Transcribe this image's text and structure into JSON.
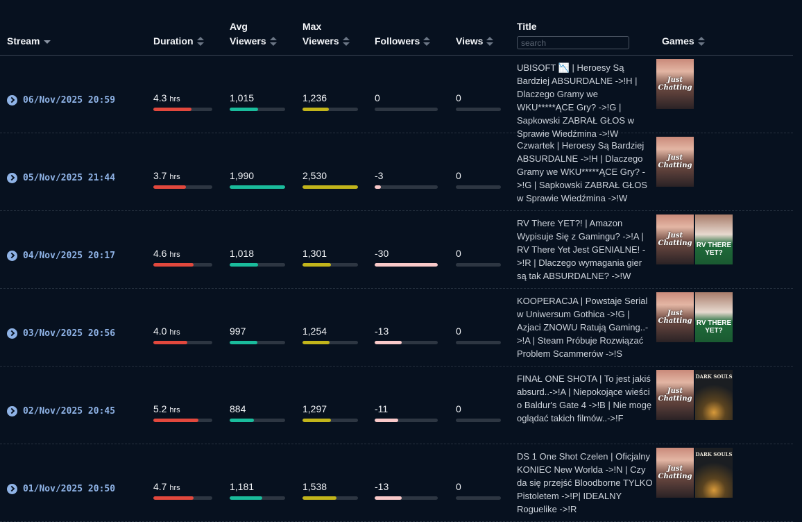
{
  "header": {
    "stream": "Stream",
    "duration": "Duration",
    "avg_viewers": [
      "Avg",
      "Viewers"
    ],
    "max_viewers": [
      "Max",
      "Viewers"
    ],
    "followers": "Followers",
    "views": "Views",
    "title": "Title",
    "title_search_placeholder": "search",
    "games": "Games"
  },
  "colors": {
    "duration": "#e2483d",
    "avg": "#1abc9c",
    "max": "#c2b51b",
    "followers": "#f9c9c9"
  },
  "duration_unit": "hrs",
  "rows": [
    {
      "stream": "06/Nov/2025 20:59",
      "duration": "4.3",
      "duration_pct": 0.65,
      "avg": "1,015",
      "avg_pct": 0.51,
      "max": "1,236",
      "max_pct": 0.48,
      "followers": "0",
      "followers_pct": 0,
      "views": "0",
      "views_pct": 0,
      "title": "UBISOFT 📉 | Heroesy Są Bardziej ABSURDALNE ->!H | Dlaczego Gramy we WKU*****ĄCE Gry? ->!G | Sapkowski ZABRAŁ GŁOS w Sprawie Wiedźmina ->!W",
      "games": [
        "Just Chatting"
      ]
    },
    {
      "stream": "05/Nov/2025 21:44",
      "duration": "3.7",
      "duration_pct": 0.55,
      "avg": "1,990",
      "avg_pct": 1.0,
      "max": "2,530",
      "max_pct": 1.0,
      "followers": "-3",
      "followers_pct": 0.1,
      "views": "0",
      "views_pct": 0,
      "title": "Czwartek | Heroesy Są Bardziej ABSURDALNE ->!H | Dlaczego Gramy we WKU*****ĄCE Gry? ->!G | Sapkowski ZABRAŁ GŁOS w Sprawie Wiedźmina ->!W",
      "games": [
        "Just Chatting"
      ]
    },
    {
      "stream": "04/Nov/2025 20:17",
      "duration": "4.6",
      "duration_pct": 0.68,
      "avg": "1,018",
      "avg_pct": 0.51,
      "max": "1,301",
      "max_pct": 0.51,
      "followers": "-30",
      "followers_pct": 1.0,
      "views": "0",
      "views_pct": 0,
      "title": "RV There YET?! | Amazon Wypisuje Się z Gamingu? ->!A | RV There Yet Jest GENIALNE! ->!R | Dlaczego wymagania gier są tak ABSURDALNE? ->!W",
      "games": [
        "Just Chatting",
        "RV There Yet?"
      ]
    },
    {
      "stream": "03/Nov/2025 20:56",
      "duration": "4.0",
      "duration_pct": 0.58,
      "avg": "997",
      "avg_pct": 0.5,
      "max": "1,254",
      "max_pct": 0.49,
      "followers": "-13",
      "followers_pct": 0.43,
      "views": "0",
      "views_pct": 0,
      "title": "KOOPERACJA | Powstaje Serial w Uniwersum Gothica ->!G | Azjaci ZNOWU Ratują Gaming..->!A | Steam Próbuje Rozwiązać Problem Scammerów ->!S",
      "games": [
        "Just Chatting",
        "RV There Yet?"
      ]
    },
    {
      "stream": "02/Nov/2025 20:45",
      "duration": "5.2",
      "duration_pct": 0.76,
      "avg": "884",
      "avg_pct": 0.44,
      "max": "1,297",
      "max_pct": 0.51,
      "followers": "-11",
      "followers_pct": 0.37,
      "views": "0",
      "views_pct": 0,
      "title": "FINAŁ ONE SHOTA | To jest jakiś absurd..->!A | Niepokojące wieści o Baldur's Gate 4 ->!B | Nie mogę oglądać takich filmów..->!F",
      "games": [
        "Just Chatting",
        "Dark Souls"
      ]
    },
    {
      "stream": "01/Nov/2025 20:50",
      "duration": "4.7",
      "duration_pct": 0.68,
      "avg": "1,181",
      "avg_pct": 0.59,
      "max": "1,538",
      "max_pct": 0.61,
      "followers": "-13",
      "followers_pct": 0.43,
      "views": "0",
      "views_pct": 0,
      "title": "DS 1 One Shot Czelen | Oficjalny KONIEC New Worlda ->!N | Czy da się przejść Bloodborne TYLKO Pistoletem ->!P| IDEALNY Roguelike ->!R",
      "games": [
        "Just Chatting",
        "Dark Souls"
      ]
    }
  ],
  "game_labels": {
    "Just Chatting": "Just Chatting",
    "RV There Yet?": "RV THERE YET?",
    "Dark Souls": "DARK SOULS"
  }
}
